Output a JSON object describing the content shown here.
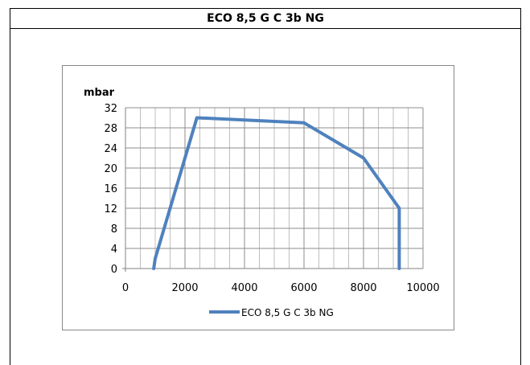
{
  "sheet": {
    "title": "ECO 8,5 G C 3b NG"
  },
  "chart_data": {
    "type": "line",
    "title": "",
    "ylabel": "mbar",
    "xlabel": "",
    "xlim": [
      0,
      10000
    ],
    "ylim": [
      0,
      32
    ],
    "xticks": [
      0,
      2000,
      4000,
      6000,
      8000,
      10000
    ],
    "yticks": [
      0,
      4,
      8,
      12,
      16,
      20,
      24,
      28,
      32
    ],
    "x_minor_step": 500,
    "grid": true,
    "legend": "bottom",
    "series": [
      {
        "name": "ECO 8,5 G C 3b NG",
        "color": "#4f81bd",
        "x": [
          950,
          1000,
          2400,
          6000,
          8000,
          9200,
          9200
        ],
        "y": [
          0,
          2,
          30,
          29,
          22,
          12,
          0
        ]
      }
    ]
  }
}
